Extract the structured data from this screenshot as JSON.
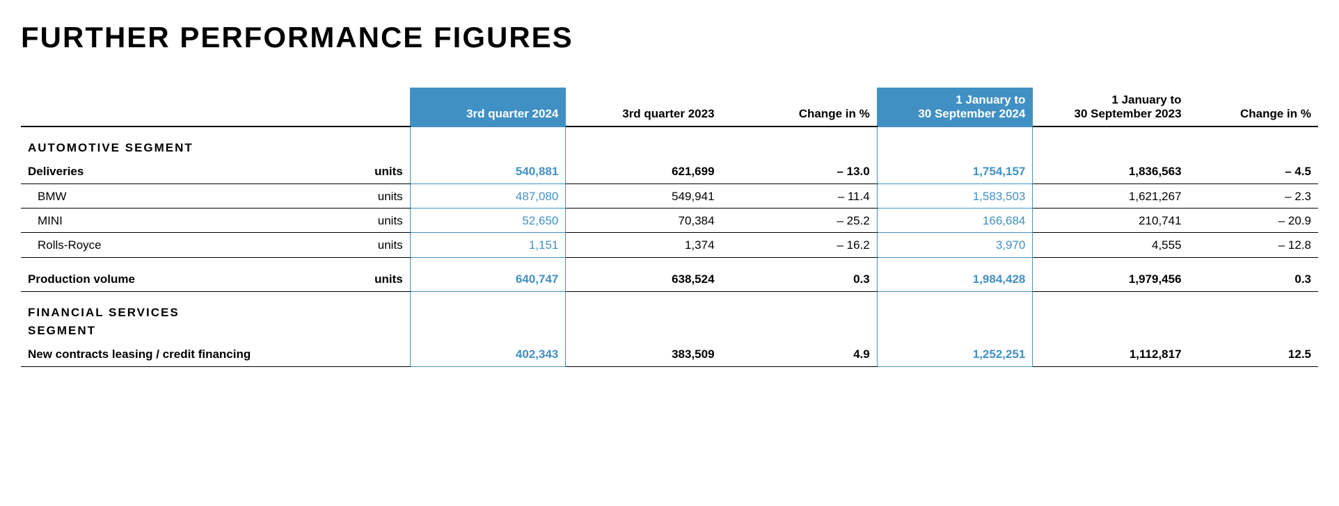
{
  "title": "FURTHER PERFORMANCE FIGURES",
  "colors": {
    "accent": "#4190c4",
    "text": "#000000",
    "bg": "#ffffff"
  },
  "type": "table",
  "columns": [
    {
      "key": "label",
      "header": ""
    },
    {
      "key": "unit",
      "header": ""
    },
    {
      "key": "q3_2024",
      "header": "3rd quarter 2024",
      "highlight": true
    },
    {
      "key": "q3_2023",
      "header": "3rd quarter 2023"
    },
    {
      "key": "change_q",
      "header": "Change in %"
    },
    {
      "key": "ytd_2024",
      "header_line1": "1 January to",
      "header_line2": "30 September 2024",
      "highlight": true
    },
    {
      "key": "ytd_2023",
      "header_line1": "1 January to",
      "header_line2": "30 September 2023"
    },
    {
      "key": "change_y",
      "header": "Change in %"
    }
  ],
  "sections": [
    {
      "title": "AUTOMOTIVE SEGMENT",
      "rows": [
        {
          "label": "Deliveries",
          "unit": "units",
          "bold": true,
          "q3_2024": "540,881",
          "q3_2023": "621,699",
          "change_q": "– 13.0",
          "ytd_2024": "1,754,157",
          "ytd_2023": "1,836,563",
          "change_y": "– 4.5"
        },
        {
          "label": "BMW",
          "unit": "units",
          "sub": true,
          "q3_2024": "487,080",
          "q3_2023": "549,941",
          "change_q": "– 11.4",
          "ytd_2024": "1,583,503",
          "ytd_2023": "1,621,267",
          "change_y": "– 2.3"
        },
        {
          "label": "MINI",
          "unit": "units",
          "sub": true,
          "q3_2024": "52,650",
          "q3_2023": "70,384",
          "change_q": "– 25.2",
          "ytd_2024": "166,684",
          "ytd_2023": "210,741",
          "change_y": "– 20.9"
        },
        {
          "label": "Rolls-Royce",
          "unit": "units",
          "sub": true,
          "q3_2024": "1,151",
          "q3_2023": "1,374",
          "change_q": "– 16.2",
          "ytd_2024": "3,970",
          "ytd_2023": "4,555",
          "change_y": "– 12.8"
        },
        {
          "spacer": true
        },
        {
          "label": "Production volume",
          "unit": "units",
          "bold": true,
          "q3_2024": "640,747",
          "q3_2023": "638,524",
          "change_q": "0.3",
          "ytd_2024": "1,984,428",
          "ytd_2023": "1,979,456",
          "change_y": "0.3"
        }
      ]
    },
    {
      "title": "FINANCIAL SERVICES SEGMENT",
      "title_break": [
        "FINANCIAL SERVICES",
        "SEGMENT"
      ],
      "rows": [
        {
          "label": "New contracts leasing / credit financing",
          "unit": "",
          "bold": true,
          "last": true,
          "q3_2024": "402,343",
          "q3_2023": "383,509",
          "change_q": "4.9",
          "ytd_2024": "1,252,251",
          "ytd_2023": "1,112,817",
          "change_y": "12.5"
        }
      ]
    }
  ]
}
